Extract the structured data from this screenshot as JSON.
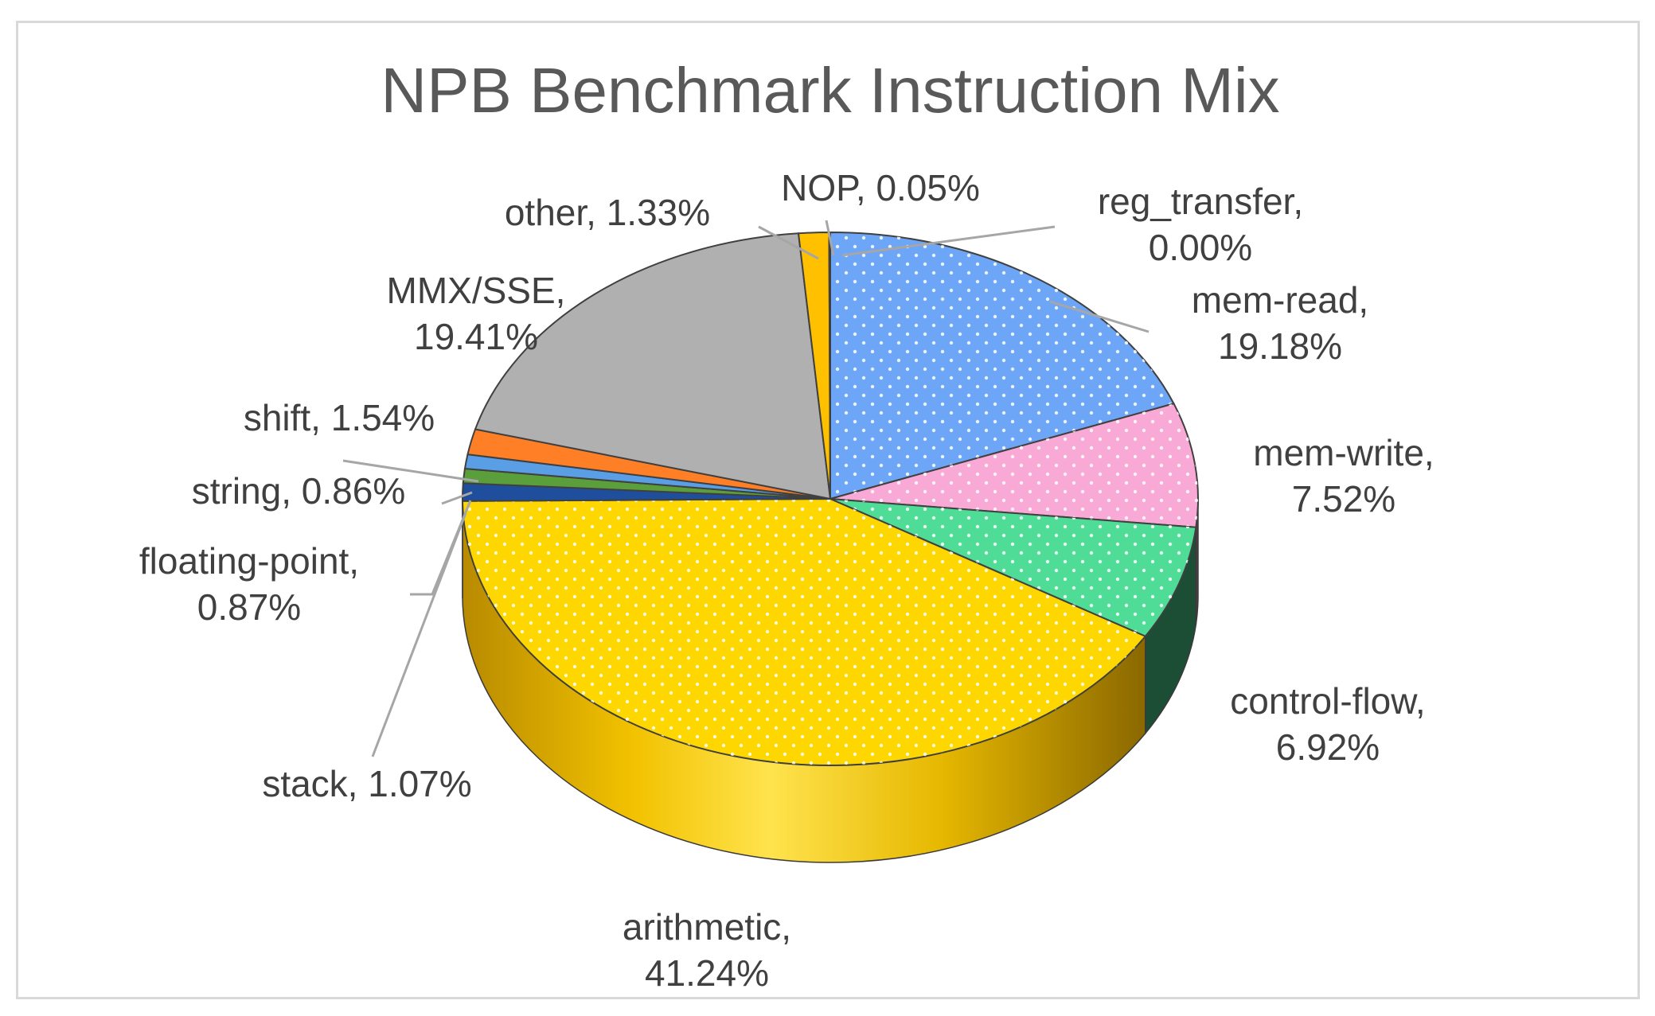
{
  "chart_data": {
    "type": "pie",
    "title": "NPB Benchmark Instruction Mix",
    "slices": [
      {
        "name": "reg_transfer",
        "value": 0.0,
        "label_line1": "reg_transfer,",
        "label_line2": "0.00%",
        "color": "#ffd966",
        "pattern": false
      },
      {
        "name": "mem-read",
        "value": 19.18,
        "label_line1": "mem-read,",
        "label_line2": "19.18%",
        "color": "#6ea6f7",
        "pattern": true
      },
      {
        "name": "mem-write",
        "value": 7.52,
        "label_line1": "mem-write,",
        "label_line2": "7.52%",
        "color": "#f9a9d6",
        "pattern": true
      },
      {
        "name": "control-flow",
        "value": 6.92,
        "label_line1": "control-flow,",
        "label_line2": "6.92%",
        "color": "#4fdc97",
        "pattern": true
      },
      {
        "name": "arithmetic",
        "value": 41.24,
        "label_line1": "arithmetic,",
        "label_line2": "41.24%",
        "color": "#ffd700",
        "pattern": true
      },
      {
        "name": "stack",
        "value": 1.07,
        "label_line1": "stack, 1.07%",
        "label_line2": "",
        "color": "#1f4e9c",
        "pattern": false
      },
      {
        "name": "floating-point",
        "value": 0.87,
        "label_line1": "floating-point,",
        "label_line2": "0.87%",
        "color": "#5b9e3c",
        "pattern": false
      },
      {
        "name": "string",
        "value": 0.86,
        "label_line1": "string, 0.86%",
        "label_line2": "",
        "color": "#5a9fe6",
        "pattern": false
      },
      {
        "name": "shift",
        "value": 1.54,
        "label_line1": "shift, 1.54%",
        "label_line2": "",
        "color": "#ff7f27",
        "pattern": false
      },
      {
        "name": "MMX/SSE",
        "value": 19.41,
        "label_line1": "MMX/SSE,",
        "label_line2": "19.41%",
        "color": "#b0b0b0",
        "pattern": false
      },
      {
        "name": "other",
        "value": 1.33,
        "label_line1": "other, 1.33%",
        "label_line2": "",
        "color": "#ffc000",
        "pattern": false
      },
      {
        "name": "NOP",
        "value": 0.05,
        "label_line1": "NOP, 0.05%",
        "label_line2": "",
        "color": "#ffd966",
        "pattern": false
      }
    ],
    "legend": "none",
    "style": "3d-pie"
  }
}
